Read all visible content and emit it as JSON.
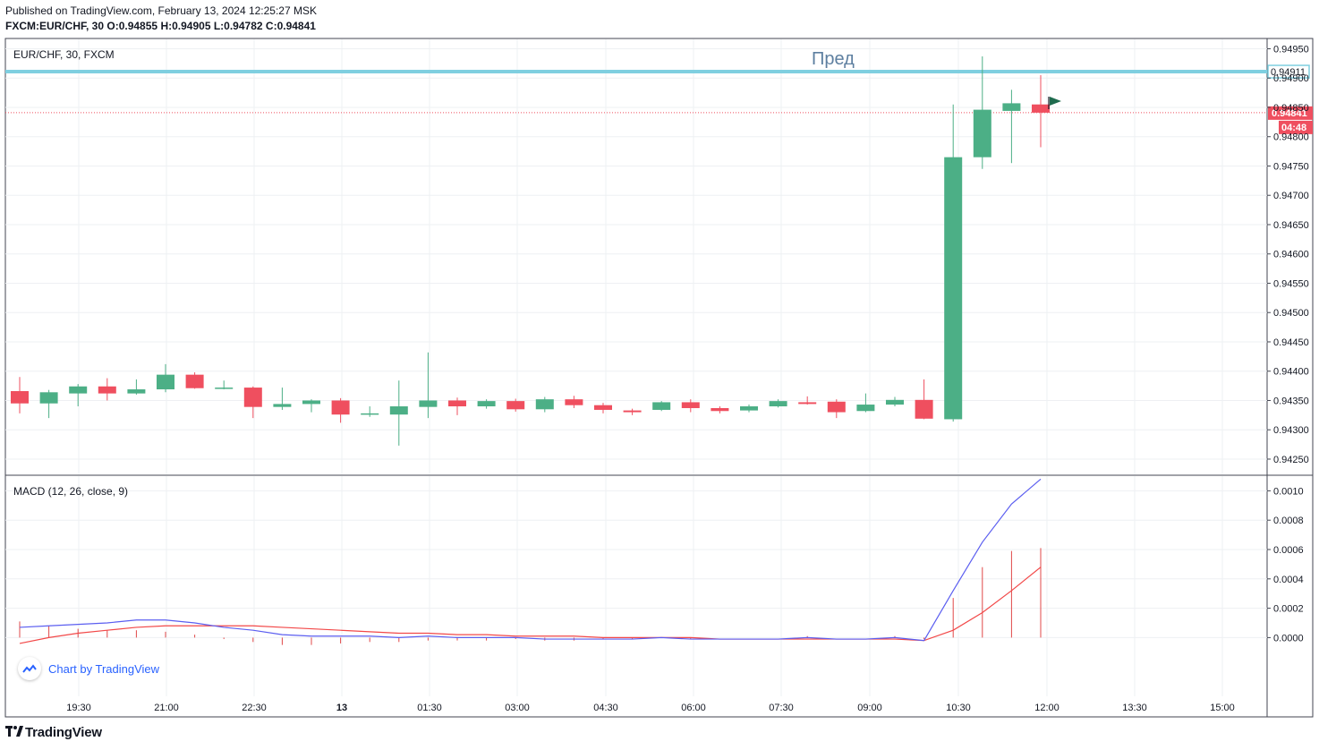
{
  "header": {
    "published": "Published on TradingView.com, February 13, 2024 12:25:27 MSK",
    "symbol": "FXCM:EUR/CHF, 30",
    "o_label": "O:",
    "o": "0.94855",
    "h_label": "H:",
    "h": "0.94905",
    "l_label": "L:",
    "l": "0.94782",
    "c_label": "C:",
    "c": "0.94841"
  },
  "legend": {
    "symbol": "EUR/CHF, 30, FXCM",
    "annotation": "Пред",
    "macd": "MACD (12, 26, close, 9)"
  },
  "watermark": {
    "text": "Chart by TradingView"
  },
  "footer": {
    "brand": "TradingView"
  },
  "colors": {
    "up": "#4caf86",
    "down": "#ef4f5f",
    "grid": "#eef0f3",
    "level_line": "#7fcfe0",
    "macd_line": "#5b5ef0",
    "signal_line": "#f24848",
    "hist": "#e04848"
  },
  "chart_data": [
    {
      "type": "candlestick",
      "title": "EUR/CHF, 30, FXCM",
      "x_labels": [
        "19:30",
        "21:00",
        "22:30",
        "13",
        "01:30",
        "03:00",
        "04:30",
        "06:00",
        "07:30",
        "09:00",
        "10:30",
        "12:00",
        "13:30",
        "15:00"
      ],
      "y_ticks": [
        "0.94950",
        "0.94900",
        "0.94850",
        "0.94800",
        "0.94750",
        "0.94700",
        "0.94650",
        "0.94600",
        "0.94550",
        "0.94500",
        "0.94450",
        "0.94400",
        "0.94350",
        "0.94300",
        "0.94250"
      ],
      "ylim": [
        0.94224,
        0.94966
      ],
      "level": {
        "value": 0.94911,
        "label": "0.94911"
      },
      "last_price": {
        "value": 0.94841,
        "label": "0.94841",
        "countdown": "04:48"
      },
      "ohlc": [
        [
          0.94366,
          0.9439,
          0.94328,
          0.94345
        ],
        [
          0.94345,
          0.94368,
          0.9432,
          0.94364
        ],
        [
          0.94362,
          0.94378,
          0.9434,
          0.94374
        ],
        [
          0.94374,
          0.94388,
          0.9435,
          0.94362
        ],
        [
          0.94362,
          0.94386,
          0.9436,
          0.94369
        ],
        [
          0.94369,
          0.94412,
          0.94364,
          0.94394
        ],
        [
          0.94394,
          0.94398,
          0.9437,
          0.94371
        ],
        [
          0.94371,
          0.94384,
          0.94369,
          0.94372
        ],
        [
          0.94372,
          0.94374,
          0.9432,
          0.94339
        ],
        [
          0.94339,
          0.94372,
          0.94334,
          0.94344
        ],
        [
          0.94344,
          0.94352,
          0.9433,
          0.9435
        ],
        [
          0.9435,
          0.94354,
          0.94312,
          0.94326
        ],
        [
          0.94326,
          0.9434,
          0.94322,
          0.94328
        ],
        [
          0.94326,
          0.94384,
          0.94273,
          0.9434
        ],
        [
          0.94339,
          0.94432,
          0.9432,
          0.9435
        ],
        [
          0.9435,
          0.94355,
          0.94325,
          0.9434
        ],
        [
          0.9434,
          0.94352,
          0.94336,
          0.94349
        ],
        [
          0.94349,
          0.94353,
          0.94331,
          0.94335
        ],
        [
          0.94335,
          0.94356,
          0.9433,
          0.94352
        ],
        [
          0.94352,
          0.94358,
          0.94337,
          0.94342
        ],
        [
          0.94342,
          0.94346,
          0.94328,
          0.94334
        ],
        [
          0.94333,
          0.94336,
          0.94325,
          0.9433
        ],
        [
          0.94334,
          0.94349,
          0.94332,
          0.94347
        ],
        [
          0.94347,
          0.94352,
          0.9433,
          0.94337
        ],
        [
          0.94337,
          0.9434,
          0.94328,
          0.94332
        ],
        [
          0.94333,
          0.94343,
          0.9433,
          0.9434
        ],
        [
          0.9434,
          0.94352,
          0.94338,
          0.94349
        ],
        [
          0.94347,
          0.94357,
          0.94343,
          0.94344
        ],
        [
          0.94348,
          0.94352,
          0.9432,
          0.9433
        ],
        [
          0.94332,
          0.94362,
          0.9433,
          0.94343
        ],
        [
          0.94343,
          0.94356,
          0.9434,
          0.94351
        ],
        [
          0.94351,
          0.94386,
          0.94318,
          0.94319
        ],
        [
          0.94318,
          0.94855,
          0.94314,
          0.94765
        ],
        [
          0.94765,
          0.94937,
          0.94745,
          0.94846
        ],
        [
          0.94844,
          0.9488,
          0.94755,
          0.94857
        ],
        [
          0.94855,
          0.94905,
          0.94782,
          0.94841
        ]
      ]
    },
    {
      "type": "line",
      "title": "MACD (12, 26, close, 9)",
      "y_ticks": [
        "0.0010",
        "0.0008",
        "0.0006",
        "0.0004",
        "0.0002",
        "0.0000"
      ],
      "ylim": [
        -0.0004,
        0.0011
      ],
      "series": [
        {
          "name": "MACD",
          "values": [
            7e-05,
            8e-05,
            9e-05,
            0.0001,
            0.00012,
            0.00012,
            0.0001,
            7e-05,
            5e-05,
            2e-05,
            1e-05,
            1e-05,
            1e-05,
            0.0,
            1e-05,
            0.0,
            0.0,
            0.0,
            -1e-05,
            -1e-05,
            -1e-05,
            -1e-05,
            0.0,
            -1e-05,
            -1e-05,
            -1e-05,
            -1e-05,
            0.0,
            -1e-05,
            -1e-05,
            0.0,
            -2e-05,
            0.00032,
            0.00065,
            0.00091,
            0.00108
          ]
        },
        {
          "name": "Signal",
          "values": [
            -4e-05,
            0.0,
            3e-05,
            5e-05,
            7e-05,
            8e-05,
            8e-05,
            8e-05,
            8e-05,
            7e-05,
            6e-05,
            5e-05,
            4e-05,
            3e-05,
            3e-05,
            2e-05,
            2e-05,
            1e-05,
            1e-05,
            1e-05,
            0.0,
            0.0,
            0.0,
            0.0,
            -1e-05,
            -1e-05,
            -1e-05,
            -1e-05,
            -1e-05,
            -1e-05,
            -1e-05,
            -2e-05,
            5e-05,
            0.00017,
            0.00032,
            0.00048
          ]
        },
        {
          "name": "Histogram",
          "values": [
            0.00011,
            8e-05,
            6e-05,
            5e-05,
            5e-05,
            4e-05,
            2e-05,
            -1e-05,
            -3e-05,
            -5e-05,
            -5e-05,
            -4e-05,
            -3e-05,
            -3e-05,
            -2e-05,
            -2e-05,
            -2e-05,
            -1e-05,
            -2e-05,
            -2e-05,
            -1e-05,
            -1e-05,
            0.0,
            -1e-05,
            0.0,
            0.0,
            0.0,
            1e-05,
            0.0,
            0.0,
            1e-05,
            -1e-05,
            0.00027,
            0.00048,
            0.00059,
            0.00061
          ]
        }
      ]
    }
  ]
}
